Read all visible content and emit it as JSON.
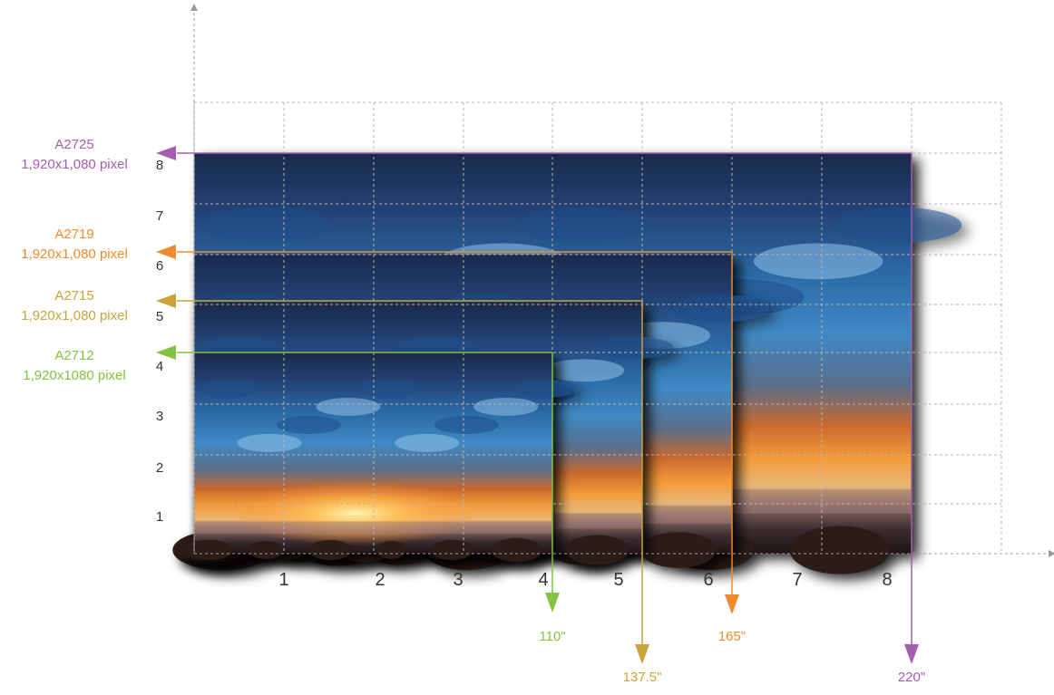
{
  "colors": {
    "A2725": "#a55db0",
    "A2719": "#f08a2c",
    "A2715": "#c9a43a",
    "A2712": "#82c341",
    "grid": "#b5b5b5",
    "axis": "#9a9a9a",
    "tick_text": "#333333"
  },
  "x_ticks": [
    "1",
    "2",
    "3",
    "4",
    "5",
    "6",
    "7",
    "8"
  ],
  "y_ticks": [
    "1",
    "2",
    "3",
    "4",
    "5",
    "6",
    "7",
    "8"
  ],
  "screens": [
    {
      "model": "A2725",
      "resolution": "1,920x1,080 pixel",
      "size": "220\"",
      "color": "#a55db0"
    },
    {
      "model": "A2719",
      "resolution": "1,920x1,080 pixel",
      "size": "165\"",
      "color": "#f08a2c"
    },
    {
      "model": "A2715",
      "resolution": "1,920x1,080 pixel",
      "size": "137.5\"",
      "color": "#c9a43a"
    },
    {
      "model": "A2712",
      "resolution": "1,920x1080 pixel",
      "size": "110\"",
      "color": "#82c341"
    }
  ]
}
